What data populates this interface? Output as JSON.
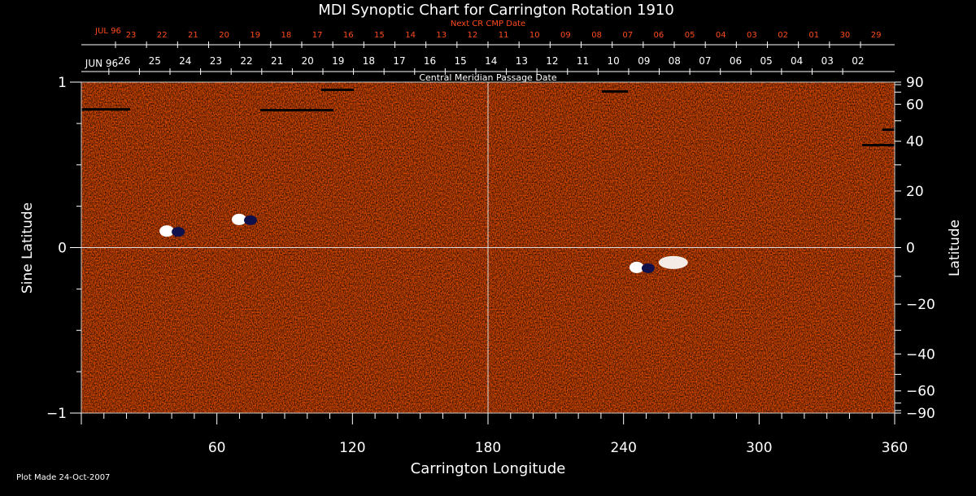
{
  "chart_data": {
    "type": "heatmap",
    "title": "MDI Synoptic Chart for Carrington Rotation 1910",
    "xlabel": "Carrington Longitude",
    "ylabel_left": "Sine Latitude",
    "ylabel_right": "Latitude",
    "xlim": [
      0,
      360
    ],
    "ylim": [
      -1,
      1
    ],
    "x_ticks": [
      60,
      120,
      180,
      240,
      300,
      360
    ],
    "y_ticks_left": [
      -1,
      0,
      1
    ],
    "y_ticks_right": [
      90,
      60,
      40,
      20,
      0,
      -20,
      -40,
      -60,
      -90
    ],
    "grid_lines": {
      "x": [
        180
      ],
      "y": [
        0
      ]
    },
    "colormap": [
      "#0a0a5a",
      "#2a1060",
      "#8a0a00",
      "#c82800",
      "#ea5200",
      "#ff8a18",
      "#ffd070",
      "#ffffff"
    ],
    "top_axis_label": "Central Meridian Passage Date",
    "top_axis_month": "JUN 96",
    "top_axis_days": [
      "26",
      "25",
      "24",
      "23",
      "22",
      "21",
      "20",
      "19",
      "18",
      "17",
      "16",
      "15",
      "14",
      "13",
      "12",
      "11",
      "10",
      "09",
      "08",
      "07",
      "06",
      "05",
      "04",
      "03",
      "02"
    ],
    "next_axis_label": "Next CR CMP Date",
    "next_axis_month": "JUL 96",
    "next_axis_days": [
      "23",
      "22",
      "21",
      "20",
      "19",
      "18",
      "17",
      "16",
      "15",
      "14",
      "13",
      "12",
      "11",
      "10",
      "09",
      "08",
      "07",
      "06",
      "05",
      "04",
      "03",
      "02",
      "01",
      "30",
      "29"
    ],
    "active_regions": [
      {
        "lon": 72,
        "sinlat": 0.17,
        "kind": "bipolar"
      },
      {
        "lon": 40,
        "sinlat": 0.1,
        "kind": "bipolar"
      },
      {
        "lon": 248,
        "sinlat": -0.12,
        "kind": "bipolar"
      },
      {
        "lon": 262,
        "sinlat": -0.09,
        "kind": "positive"
      }
    ]
  },
  "footer": {
    "plot_made": "Plot Made 24-Oct-2007"
  }
}
